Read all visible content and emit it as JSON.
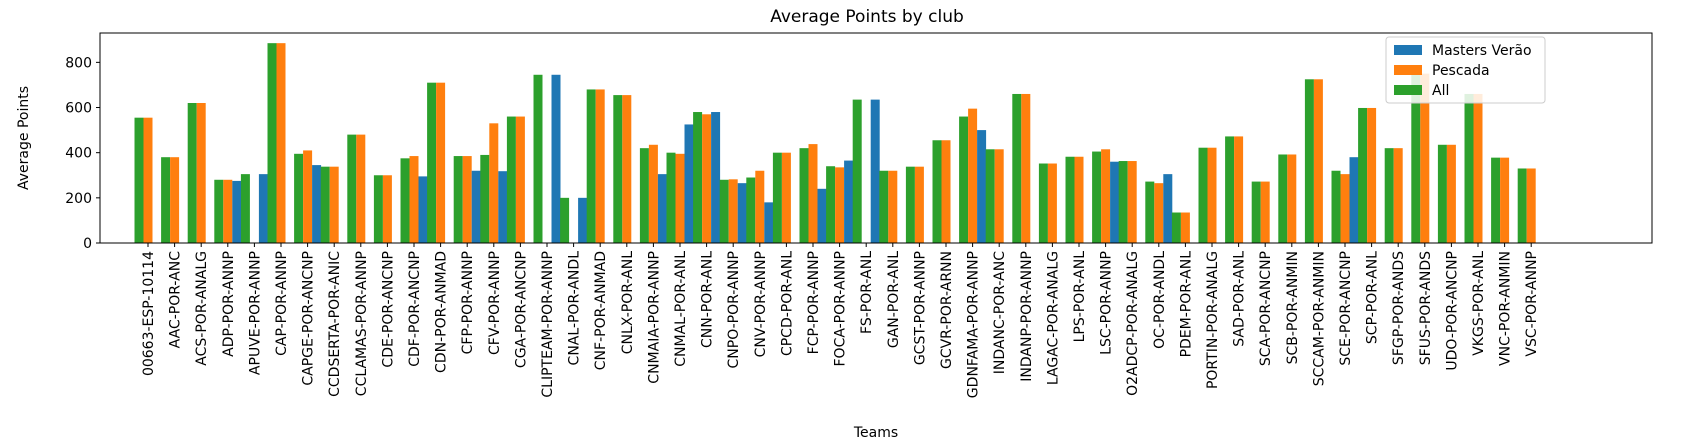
{
  "chart_data": {
    "type": "bar",
    "title": "Average Points by club",
    "xlabel": "Teams",
    "ylabel": "Average Points",
    "ylim": [
      0,
      930
    ],
    "yticks": [
      0,
      200,
      400,
      600,
      800
    ],
    "legend_position": "top-right",
    "grid": false,
    "categories": [
      "00663-ESP-10114",
      "AAC-POR-ANC",
      "ACS-POR-ANALG",
      "ADP-POR-ANNP",
      "APUVE-POR-ANNP",
      "CAP-POR-ANNP",
      "CAPGE-POR-ANCNP",
      "CCDSERTA-POR-ANIC",
      "CCLAMAS-POR-ANNP",
      "CDE-POR-ANCNP",
      "CDF-POR-ANCNP",
      "CDN-POR-ANMAD",
      "CFP-POR-ANNP",
      "CFV-POR-ANNP",
      "CGA-POR-ANCNP",
      "CLIPTEAM-POR-ANNP",
      "CNAL-POR-ANDL",
      "CNF-POR-ANMAD",
      "CNLX-POR-ANL",
      "CNMAIA-POR-ANNP",
      "CNMAL-POR-ANL",
      "CNN-POR-ANL",
      "CNPO-POR-ANNP",
      "CNV-POR-ANNP",
      "CPCD-POR-ANL",
      "FCP-POR-ANNP",
      "FOCA-POR-ANNP",
      "FS-POR-ANL",
      "GAN-POR-ANL",
      "GCST-POR-ANNP",
      "GCVR-POR-ARNN",
      "GDNFAMA-POR-ANNP",
      "INDANC-POR-ANC",
      "INDANP-POR-ANNP",
      "LAGAC-POR-ANALG",
      "LPS-POR-ANL",
      "LSC-POR-ANNP",
      "O2ADCP-POR-ANALG",
      "OC-POR-ANDL",
      "PDEM-POR-ANL",
      "PORTIN-POR-ANALG",
      "SAD-POR-ANL",
      "SCA-POR-ANCNP",
      "SCB-POR-ANMIN",
      "SCCAM-POR-ANMIN",
      "SCE-POR-ANCNP",
      "SCP-POR-ANL",
      "SFGP-POR-ANDS",
      "SFUS-POR-ANDS",
      "UDO-POR-ANCNP",
      "VKGS-POR-ANL",
      "VNC-POR-ANMIN",
      "VSC-POR-ANNP"
    ],
    "series": [
      {
        "name": "Masters Verão",
        "color": "#1f77b4",
        "values": [
          null,
          null,
          null,
          275,
          305,
          null,
          345,
          null,
          null,
          null,
          295,
          null,
          320,
          318,
          null,
          745,
          200,
          null,
          null,
          305,
          525,
          580,
          265,
          180,
          null,
          240,
          365,
          635,
          null,
          null,
          null,
          500,
          null,
          null,
          null,
          null,
          360,
          null,
          305,
          null,
          null,
          null,
          null,
          null,
          null,
          380,
          null,
          null,
          null,
          null,
          null,
          null,
          null
        ]
      },
      {
        "name": "Pescada",
        "color": "#ff7f0e",
        "values": [
          555,
          380,
          620,
          280,
          null,
          885,
          410,
          338,
          480,
          300,
          385,
          710,
          385,
          530,
          560,
          null,
          null,
          680,
          655,
          435,
          395,
          570,
          282,
          320,
          400,
          438,
          335,
          null,
          320,
          338,
          455,
          595,
          415,
          660,
          352,
          382,
          415,
          363,
          265,
          135,
          422,
          472,
          272,
          392,
          725,
          305,
          598,
          420,
          750,
          435,
          660,
          378,
          330
        ]
      },
      {
        "name": "All",
        "color": "#2ca02c",
        "values": [
          555,
          380,
          620,
          280,
          305,
          885,
          395,
          338,
          480,
          300,
          375,
          710,
          385,
          390,
          560,
          745,
          200,
          680,
          655,
          420,
          400,
          580,
          280,
          290,
          400,
          420,
          340,
          635,
          320,
          338,
          455,
          560,
          415,
          660,
          352,
          382,
          405,
          363,
          272,
          135,
          422,
          472,
          272,
          392,
          725,
          320,
          598,
          420,
          750,
          435,
          660,
          378,
          330
        ]
      }
    ]
  }
}
